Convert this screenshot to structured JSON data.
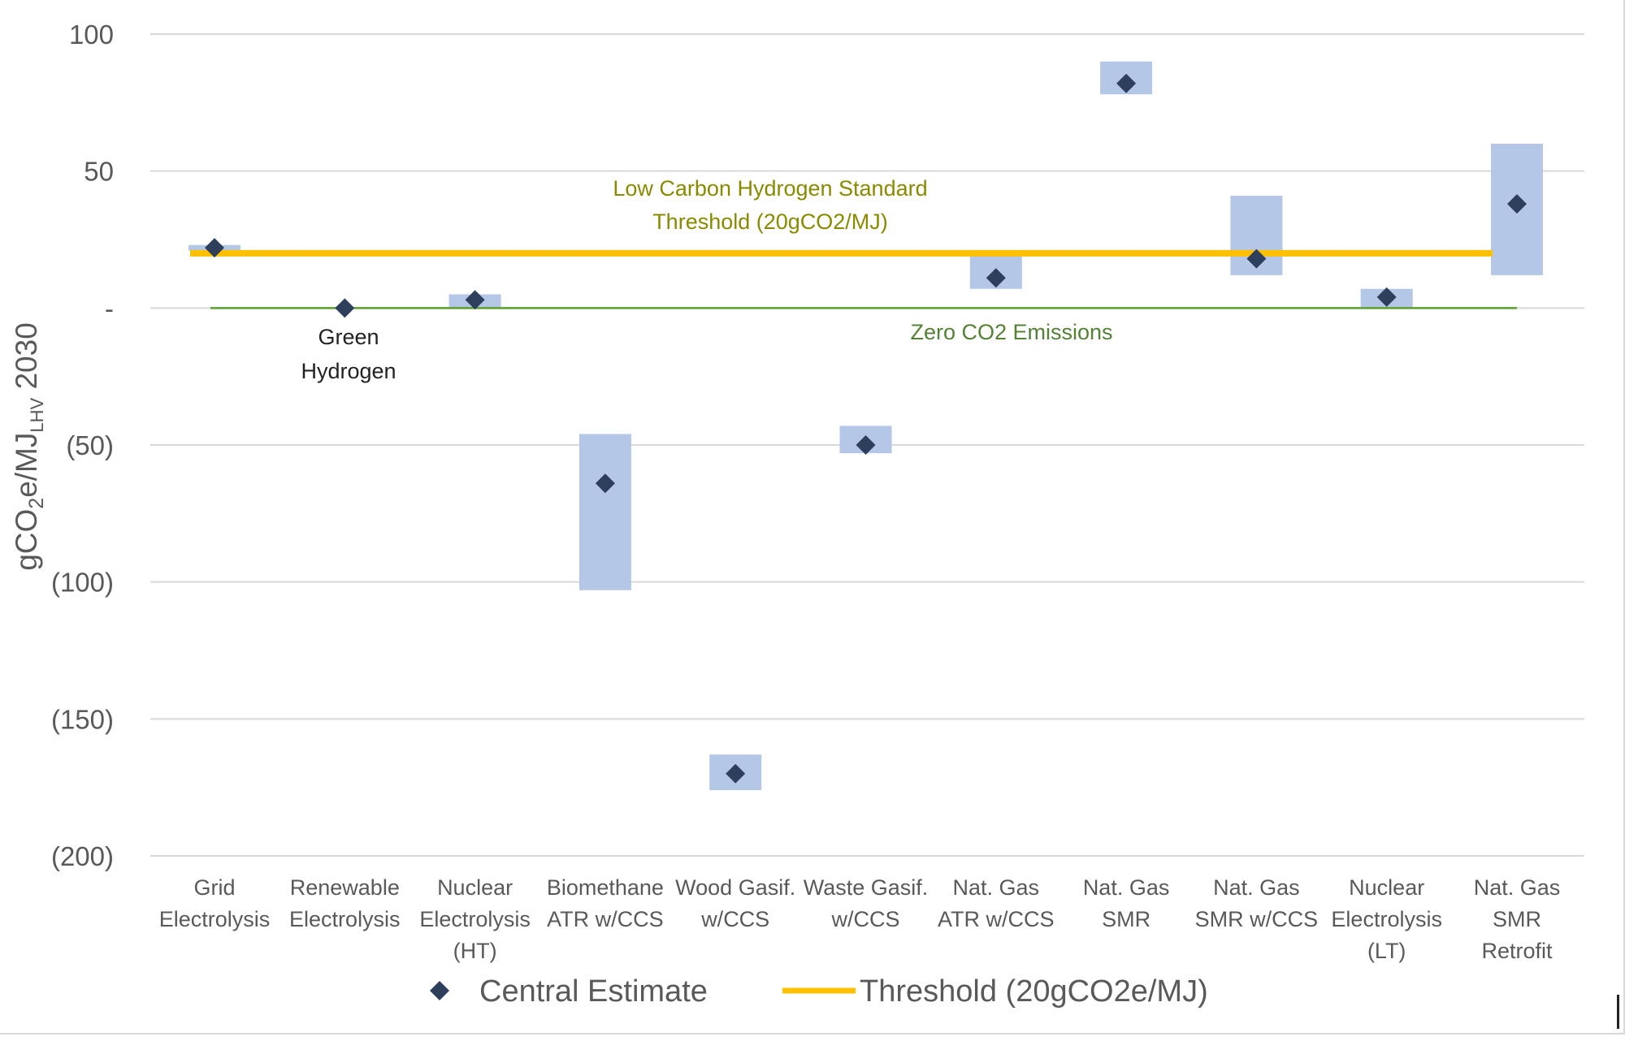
{
  "chart_data": {
    "type": "scatter",
    "ylabel": "gCO",
    "ylabel_sub2": "2",
    "ylabel_mid": "e/MJ",
    "ylabel_sub_lhv": "LHV",
    "ylabel_year": " 2030",
    "ylim": [
      -200,
      100
    ],
    "yticks": [
      100,
      50,
      0,
      -50,
      -100,
      -150,
      -200
    ],
    "ytick_labels": [
      "100",
      "50",
      "-",
      "(50)",
      "(100)",
      "(150)",
      "(200)"
    ],
    "grid": true,
    "categories": [
      [
        "Grid",
        "Electrolysis"
      ],
      [
        "Renewable",
        "Electrolysis"
      ],
      [
        "Nuclear",
        "Electrolysis",
        "(HT)"
      ],
      [
        "Biomethane",
        "ATR w/CCS"
      ],
      [
        "Wood Gasif.",
        "w/CCS"
      ],
      [
        "Waste Gasif.",
        "w/CCS"
      ],
      [
        "Nat. Gas",
        "ATR w/CCS"
      ],
      [
        "Nat. Gas",
        "SMR"
      ],
      [
        "Nat. Gas",
        "SMR w/CCS"
      ],
      [
        "Nuclear",
        "Electrolysis",
        "(LT)"
      ],
      [
        "Nat. Gas",
        "SMR",
        "Retrofit"
      ]
    ],
    "series": [
      {
        "name": "Central Estimate",
        "color": "#2e3f5c",
        "marker": "diamond",
        "values": [
          22,
          0,
          3,
          -64,
          -170,
          -50,
          11,
          82,
          18,
          4,
          38
        ]
      }
    ],
    "ranges": {
      "color": "#b4c7e7",
      "low": [
        21,
        0,
        0,
        -103,
        -176,
        -53,
        7,
        78,
        12,
        0,
        12
      ],
      "high": [
        23,
        0,
        5,
        -46,
        -163,
        -43,
        20,
        90,
        41,
        7,
        60
      ]
    },
    "threshold": {
      "name": "Threshold (20gCO2e/MJ)",
      "value": 20,
      "color": "#ffc000"
    },
    "zero_line": {
      "value": 0,
      "color": "#5aa02c"
    },
    "annotations": {
      "threshold_line1": "Low Carbon Hydrogen Standard",
      "threshold_line2": "Threshold (20gCO2/MJ)",
      "zero": "Zero CO2 Emissions",
      "green_line1": "Green",
      "green_line2": "Hydrogen"
    },
    "legend": {
      "placement": "bottom",
      "central_label": "Central Estimate",
      "threshold_label": "Threshold (20gCO2e/MJ)"
    }
  }
}
